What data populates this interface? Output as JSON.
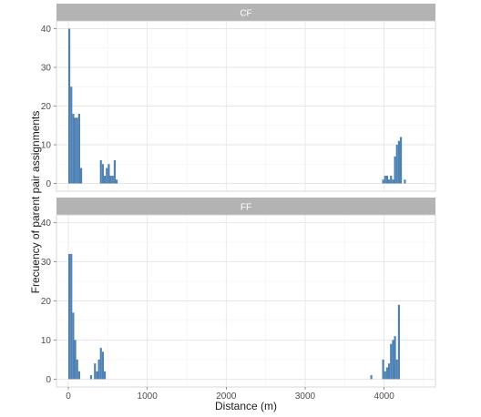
{
  "chart_data": {
    "type": "bar",
    "facet_layout": "vertical",
    "grid": true,
    "bin_width": 25,
    "xlabel": "Distance (m)",
    "ylabel": "Frecuency of parent pair assignments",
    "x_ticks": [
      0,
      1000,
      2000,
      3000,
      4000
    ],
    "y_ticks": [
      0,
      10,
      20,
      30,
      40
    ],
    "xlim": [
      -150,
      4650
    ],
    "ylim": [
      -2,
      42
    ],
    "bar_color": "#4e81b4",
    "strip_color": "#b3b3b3",
    "panels": [
      {
        "strip_label": "CF",
        "bins": [
          {
            "x": 0,
            "y": 40
          },
          {
            "x": 25,
            "y": 25
          },
          {
            "x": 50,
            "y": 18
          },
          {
            "x": 75,
            "y": 17
          },
          {
            "x": 100,
            "y": 17
          },
          {
            "x": 125,
            "y": 18
          },
          {
            "x": 150,
            "y": 4
          },
          {
            "x": 400,
            "y": 6
          },
          {
            "x": 425,
            "y": 5
          },
          {
            "x": 450,
            "y": 2
          },
          {
            "x": 475,
            "y": 4
          },
          {
            "x": 500,
            "y": 5
          },
          {
            "x": 525,
            "y": 2
          },
          {
            "x": 550,
            "y": 2
          },
          {
            "x": 575,
            "y": 6
          },
          {
            "x": 600,
            "y": 1
          },
          {
            "x": 3975,
            "y": 1
          },
          {
            "x": 4000,
            "y": 2
          },
          {
            "x": 4025,
            "y": 2
          },
          {
            "x": 4050,
            "y": 1
          },
          {
            "x": 4075,
            "y": 2
          },
          {
            "x": 4100,
            "y": 1
          },
          {
            "x": 4125,
            "y": 7
          },
          {
            "x": 4150,
            "y": 10
          },
          {
            "x": 4175,
            "y": 11
          },
          {
            "x": 4200,
            "y": 12
          },
          {
            "x": 4250,
            "y": 1
          }
        ]
      },
      {
        "strip_label": "FF",
        "bins": [
          {
            "x": 0,
            "y": 32
          },
          {
            "x": 25,
            "y": 32
          },
          {
            "x": 50,
            "y": 17
          },
          {
            "x": 75,
            "y": 10
          },
          {
            "x": 100,
            "y": 5
          },
          {
            "x": 125,
            "y": 2
          },
          {
            "x": 275,
            "y": 1
          },
          {
            "x": 325,
            "y": 4
          },
          {
            "x": 350,
            "y": 2
          },
          {
            "x": 375,
            "y": 5
          },
          {
            "x": 400,
            "y": 8
          },
          {
            "x": 425,
            "y": 7
          },
          {
            "x": 450,
            "y": 2
          },
          {
            "x": 3825,
            "y": 1
          },
          {
            "x": 3975,
            "y": 5
          },
          {
            "x": 4000,
            "y": 2
          },
          {
            "x": 4025,
            "y": 3
          },
          {
            "x": 4050,
            "y": 4
          },
          {
            "x": 4075,
            "y": 9
          },
          {
            "x": 4100,
            "y": 10
          },
          {
            "x": 4125,
            "y": 11
          },
          {
            "x": 4150,
            "y": 5
          },
          {
            "x": 4175,
            "y": 19
          }
        ]
      }
    ]
  }
}
